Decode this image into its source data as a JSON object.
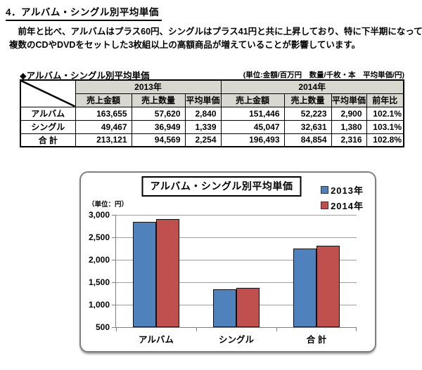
{
  "page": {
    "title": "4．アルバム・シングル別平均単価",
    "paragraph_line1": "　前年と比べ、アルバムはプラス60円、シングルはプラス41円と共に上昇しており、特に下半期になって",
    "paragraph_line2": "複数のCDやDVDをセットした3枚組以上の高額商品が増えていることが影響しています。"
  },
  "table": {
    "caption": "◆アルバム・シングル別平均単価",
    "unit_note": "(単位:金額/百万円　数量/千枚・本　平均単価/円)",
    "year_headers": [
      "2013年",
      "2014年"
    ],
    "col_headers": [
      "売上金額",
      "売上数量",
      "平均単価",
      "売上金額",
      "売上数量",
      "平均単価",
      "前年比"
    ],
    "rows": [
      [
        "アルバム",
        "163,655",
        "57,620",
        "2,840",
        "151,446",
        "52,223",
        "2,900",
        "102.1%"
      ],
      [
        "シングル",
        "49,467",
        "36,949",
        "1,339",
        "45,047",
        "32,631",
        "1,380",
        "103.1%"
      ],
      [
        "合 計",
        "213,121",
        "94,569",
        "2,254",
        "196,493",
        "84,854",
        "2,316",
        "102.8%"
      ]
    ]
  },
  "chart_data": {
    "type": "bar",
    "title": "アルバム・シングル別平均単価",
    "unit_label": "（単位：円）",
    "categories": [
      "アルバム",
      "シングル",
      "合 計"
    ],
    "series": [
      {
        "name": "2013年",
        "color": "#4f81bd",
        "values": [
          2840,
          1339,
          2254
        ]
      },
      {
        "name": "2014年",
        "color": "#c0504d",
        "values": [
          2900,
          1380,
          2316
        ]
      }
    ],
    "ylim": [
      500,
      3000
    ],
    "ytick_step": 500,
    "grid": true,
    "legend_position": "top-right"
  }
}
